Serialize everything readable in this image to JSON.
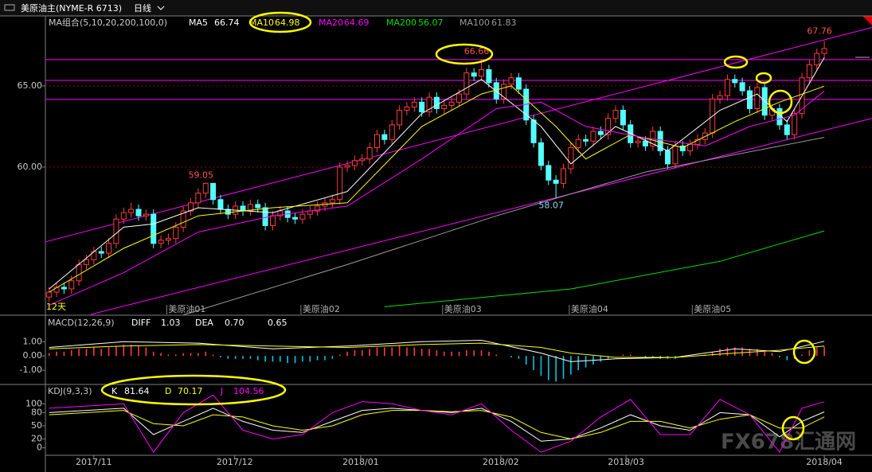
{
  "toolbar": {
    "symbol": "美原油主(NYME-R 6713)",
    "period": "日线"
  },
  "chart_data": [
    {
      "type": "candlestick",
      "indicator_label": "MA组合(5,10,20,200,100,0)",
      "up_color": "#ff3c3c",
      "down_color": "#54ffff",
      "xlim": [
        -0.5,
        110.4
      ],
      "ylim": [
        50.93,
        69.31
      ],
      "yticks": [
        {
          "value": 65,
          "label": "65.00"
        },
        {
          "value": 60,
          "label": "60.00"
        }
      ],
      "grid": true,
      "xticks": [
        {
          "value": 6,
          "label": "2017/11"
        },
        {
          "value": 24.9,
          "label": "2017/12"
        },
        {
          "value": 41.8,
          "label": "2018/01"
        },
        {
          "value": 60.6,
          "label": "2018/02"
        },
        {
          "value": 77.4,
          "label": "2018/03"
        },
        {
          "value": 104,
          "label": "2018/04"
        }
      ],
      "open": [
        52.0,
        52.3,
        52.6,
        52.5,
        53.0,
        54.0,
        54.3,
        54.8,
        54.7,
        55.3,
        56.8,
        57.2,
        57.4,
        57.0,
        57.1,
        55.3,
        55.5,
        55.6,
        56.3,
        57.3,
        57.8,
        58.4,
        59.0,
        58.0,
        57.4,
        57.1,
        57.6,
        57.3,
        57.7,
        57.5,
        56.4,
        57.0,
        57.3,
        56.9,
        56.8,
        57.1,
        57.3,
        57.6,
        57.8,
        58.0,
        60.0,
        60.1,
        60.4,
        60.5,
        61.2,
        62.0,
        61.7,
        62.6,
        63.5,
        63.7,
        64.0,
        63.4,
        64.3,
        63.6,
        63.8,
        64.0,
        64.5,
        65.8,
        65.6,
        66.0,
        65.2,
        64.2,
        65.1,
        65.5,
        64.8,
        62.9,
        61.5,
        60.1,
        59.2,
        59.0,
        59.9,
        61.2,
        61.7,
        61.6,
        62.2,
        62.0,
        63.0,
        63.5,
        62.6,
        61.5,
        61.6,
        61.3,
        62.2,
        61.0,
        60.2,
        61.3,
        61.0,
        61.4,
        61.7,
        62.1,
        64.2,
        64.4,
        65.4,
        65.2,
        64.7,
        63.6,
        64.9,
        63.2,
        63.6,
        62.6,
        62.0,
        63.3,
        65.5,
        66.3,
        67.0
      ],
      "high": [
        52.6,
        52.9,
        52.9,
        53.3,
        54.3,
        54.6,
        55.1,
        55.1,
        55.6,
        57.1,
        57.5,
        57.8,
        57.7,
        57.4,
        57.4,
        55.8,
        55.9,
        56.6,
        57.6,
        58.1,
        58.7,
        59.05,
        59.0,
        58.3,
        57.7,
        57.9,
        57.9,
        58.0,
        58.0,
        57.8,
        57.3,
        57.6,
        57.6,
        57.2,
        57.4,
        57.6,
        57.9,
        58.1,
        58.3,
        60.3,
        60.4,
        60.7,
        60.8,
        61.5,
        62.3,
        62.3,
        62.9,
        63.8,
        64.0,
        64.3,
        64.3,
        64.6,
        64.6,
        64.1,
        64.3,
        64.8,
        66.1,
        66.1,
        66.66,
        66.3,
        65.5,
        65.4,
        65.8,
        65.8,
        65.1,
        63.2,
        61.8,
        60.4,
        59.5,
        60.2,
        61.5,
        62.0,
        62.0,
        62.5,
        62.5,
        63.3,
        63.8,
        63.8,
        62.9,
        61.9,
        61.9,
        62.5,
        62.5,
        61.3,
        61.6,
        61.6,
        61.7,
        62.0,
        62.4,
        64.5,
        64.7,
        65.7,
        65.7,
        65.5,
        65.0,
        65.2,
        65.2,
        63.9,
        63.9,
        62.9,
        63.6,
        65.8,
        66.6,
        67.3,
        67.76
      ],
      "low": [
        51.7,
        52.0,
        52.2,
        52.2,
        52.7,
        53.7,
        54.0,
        54.4,
        54.4,
        55.0,
        56.5,
        56.9,
        56.7,
        56.7,
        55.0,
        55.0,
        55.2,
        55.3,
        56.0,
        57.0,
        57.5,
        58.1,
        57.7,
        57.1,
        56.8,
        56.8,
        57.0,
        57.0,
        57.2,
        56.1,
        56.1,
        56.7,
        56.6,
        56.5,
        56.5,
        56.8,
        57.0,
        57.3,
        57.5,
        57.7,
        59.7,
        59.8,
        60.1,
        60.2,
        60.9,
        61.4,
        61.4,
        62.3,
        63.2,
        63.4,
        63.1,
        63.1,
        63.3,
        63.3,
        63.5,
        63.7,
        64.2,
        65.3,
        65.3,
        64.9,
        63.9,
        63.9,
        64.8,
        64.5,
        62.6,
        61.2,
        59.8,
        58.9,
        58.07,
        58.7,
        59.6,
        60.9,
        61.3,
        61.3,
        61.7,
        61.7,
        62.7,
        62.3,
        61.2,
        61.2,
        61.0,
        61.0,
        60.7,
        59.9,
        59.9,
        60.7,
        60.7,
        61.1,
        61.4,
        61.8,
        63.9,
        64.1,
        64.9,
        64.4,
        63.3,
        63.3,
        62.9,
        62.9,
        62.3,
        61.7,
        61.7,
        63.0,
        65.2,
        66.0,
        66.7
      ],
      "close": [
        52.3,
        52.6,
        52.5,
        53.0,
        54.0,
        54.3,
        54.8,
        54.7,
        55.3,
        56.8,
        57.2,
        57.4,
        57.0,
        57.1,
        55.3,
        55.5,
        55.6,
        56.3,
        57.3,
        57.8,
        58.4,
        59.0,
        58.0,
        57.4,
        57.1,
        57.6,
        57.3,
        57.7,
        57.5,
        56.4,
        57.0,
        57.3,
        56.9,
        56.8,
        57.1,
        57.3,
        57.6,
        57.8,
        58.0,
        60.0,
        60.1,
        60.4,
        60.5,
        61.2,
        62.0,
        61.7,
        62.6,
        63.5,
        63.7,
        64.0,
        63.4,
        64.3,
        63.6,
        63.8,
        64.0,
        64.5,
        65.8,
        65.6,
        66.0,
        65.2,
        64.2,
        65.1,
        65.5,
        64.8,
        62.9,
        61.5,
        60.1,
        59.2,
        59.0,
        59.9,
        61.2,
        61.7,
        61.6,
        62.2,
        62.0,
        63.0,
        63.5,
        62.6,
        61.5,
        61.6,
        61.3,
        62.2,
        61.0,
        60.2,
        61.3,
        61.0,
        61.4,
        61.7,
        62.1,
        64.2,
        64.4,
        65.4,
        65.2,
        64.7,
        63.6,
        64.9,
        63.2,
        63.6,
        62.6,
        62.0,
        63.3,
        65.5,
        66.3,
        67.0,
        67.3
      ],
      "lines": [
        {
          "name": "MA5",
          "color": "#ffffff",
          "x": [
            0,
            10,
            14,
            20,
            30,
            40,
            50,
            58,
            66,
            70,
            76,
            83,
            90,
            95,
            99,
            104
          ],
          "values": [
            52.5,
            56.3,
            56.5,
            57.5,
            57.2,
            58.5,
            63.3,
            65.4,
            62.5,
            60.2,
            62.5,
            61.0,
            63.5,
            64.5,
            62.8,
            66.74
          ]
        },
        {
          "name": "MA10",
          "color": "#ffff00",
          "x": [
            0,
            10,
            20,
            30,
            40,
            50,
            58,
            62,
            68,
            72,
            78,
            85,
            92,
            98,
            104
          ],
          "values": [
            52.3,
            55.0,
            57.0,
            57.5,
            57.8,
            62.5,
            64.5,
            65.0,
            62.5,
            60.5,
            62.0,
            61.2,
            62.8,
            64.0,
            64.98
          ]
        },
        {
          "name": "MA20",
          "color": "#ff00ff",
          "x": [
            0,
            10,
            20,
            30,
            40,
            50,
            60,
            66,
            72,
            80,
            88,
            94,
            100,
            104
          ],
          "values": [
            51.5,
            53.5,
            56.0,
            57.0,
            57.6,
            60.5,
            63.6,
            64.0,
            62.5,
            61.8,
            61.3,
            62.5,
            63.2,
            64.69
          ]
        },
        {
          "name": "MA200",
          "color": "#00e000",
          "x": [
            45,
            70,
            90,
            104
          ],
          "values": [
            51.4,
            52.5,
            54.2,
            56.07
          ]
        },
        {
          "name": "MA100",
          "color": "#9a9a9a",
          "x": [
            18,
            40,
            60,
            80,
            104
          ],
          "values": [
            50.9,
            54.0,
            57.0,
            59.7,
            61.83
          ]
        }
      ],
      "levels": [
        66.62,
        65.34,
        64.17
      ],
      "trendlines": [
        {
          "x": [
            -0.5,
            110.4
          ],
          "values": [
            55.4,
            68.6
          ]
        },
        {
          "x": [
            5.6,
            110.4
          ],
          "values": [
            50.93,
            63.0
          ]
        }
      ],
      "contracts": [
        {
          "value": 16,
          "label": "美原油01"
        },
        {
          "value": 34,
          "label": "美原油02"
        },
        {
          "value": 53,
          "label": "美原油03"
        },
        {
          "value": 70,
          "label": "美原油04"
        },
        {
          "value": 86.5,
          "label": "美原油05"
        }
      ],
      "days_label": "12天",
      "watermark": "FX678汇通网"
    },
    {
      "type": "macd",
      "title": "MACD(12,26,9)",
      "ylim": [
        -2.0,
        2.86
      ],
      "yticks": [
        {
          "value": 1,
          "label": "1.00"
        },
        {
          "value": 0,
          "label": "0.00"
        },
        {
          "value": -1,
          "label": "-1.00"
        }
      ],
      "up_color": "#ff3c3c",
      "down_color": "#00c8e6",
      "values": [
        0.2,
        0.3,
        0.3,
        0.4,
        0.5,
        0.5,
        0.6,
        0.5,
        0.6,
        0.7,
        0.8,
        0.8,
        0.7,
        0.6,
        0.3,
        0.2,
        0.1,
        0.1,
        0.2,
        0.2,
        0.2,
        0.3,
        0.1,
        -0.1,
        -0.2,
        -0.2,
        -0.2,
        -0.2,
        -0.3,
        -0.4,
        -0.4,
        -0.4,
        -0.5,
        -0.5,
        -0.4,
        -0.4,
        -0.3,
        -0.3,
        -0.2,
        0.1,
        0.3,
        0.4,
        0.4,
        0.5,
        0.6,
        0.6,
        0.6,
        0.7,
        0.6,
        0.6,
        0.5,
        0.5,
        0.4,
        0.3,
        0.3,
        0.3,
        0.4,
        0.4,
        0.4,
        0.3,
        0.1,
        0.0,
        -0.1,
        -0.2,
        -0.6,
        -1.0,
        -1.4,
        -1.7,
        -1.8,
        -1.6,
        -1.3,
        -1.0,
        -0.8,
        -0.6,
        -0.4,
        -0.2,
        0.0,
        0.1,
        0.1,
        0.0,
        -0.1,
        -0.1,
        -0.2,
        -0.2,
        -0.2,
        -0.1,
        0.0,
        0.0,
        0.1,
        0.3,
        0.5,
        0.6,
        0.6,
        0.6,
        0.5,
        0.5,
        0.3,
        0.2,
        -0.1,
        -0.3,
        -0.2,
        0.1,
        0.4,
        0.6,
        0.65
      ],
      "series": [
        {
          "name": "DIFF",
          "color": "#ffffff",
          "x": [
            0,
            10,
            20,
            30,
            40,
            50,
            58,
            66,
            70,
            76,
            84,
            92,
            98,
            104
          ],
          "values": [
            0.6,
            1.0,
            0.9,
            0.5,
            0.7,
            1.0,
            1.1,
            0.2,
            -0.4,
            -0.2,
            -0.1,
            0.5,
            0.3,
            1.03
          ]
        },
        {
          "name": "DEA",
          "color": "#ffff00",
          "x": [
            0,
            10,
            20,
            30,
            40,
            50,
            58,
            66,
            70,
            76,
            84,
            92,
            98,
            104
          ],
          "values": [
            0.5,
            0.7,
            0.8,
            0.7,
            0.6,
            0.8,
            0.9,
            0.6,
            0.2,
            -0.1,
            -0.1,
            0.2,
            0.4,
            0.7
          ],
          "value_labels": [
            null,
            null,
            null,
            null,
            null,
            null,
            null,
            null,
            null,
            null,
            null,
            null,
            null,
            "0.70"
          ]
        }
      ]
    },
    {
      "type": "line",
      "title": "KDJ(9,3,3)",
      "ylim": [
        -17,
        144
      ],
      "yticks": [
        100,
        80,
        50,
        20,
        0
      ],
      "series": [
        {
          "name": "K",
          "color": "#ffffff",
          "x": [
            0,
            5,
            10,
            14,
            18,
            22,
            26,
            30,
            34,
            38,
            42,
            46,
            50,
            54,
            58,
            62,
            66,
            70,
            74,
            78,
            82,
            86,
            90,
            94,
            98,
            101,
            104
          ],
          "values": [
            80,
            85,
            90,
            30,
            60,
            90,
            60,
            40,
            35,
            60,
            85,
            90,
            85,
            80,
            90,
            60,
            15,
            20,
            45,
            75,
            50,
            40,
            80,
            75,
            25,
            60,
            81.64
          ]
        },
        {
          "name": "D",
          "color": "#ffff00",
          "x": [
            0,
            5,
            10,
            14,
            18,
            22,
            26,
            30,
            34,
            38,
            42,
            46,
            50,
            54,
            58,
            62,
            66,
            70,
            74,
            78,
            82,
            86,
            90,
            94,
            98,
            101,
            104
          ],
          "values": [
            75,
            80,
            85,
            55,
            50,
            75,
            70,
            50,
            40,
            50,
            75,
            85,
            85,
            82,
            85,
            70,
            35,
            20,
            35,
            60,
            60,
            45,
            65,
            75,
            45,
            45,
            70.17
          ]
        },
        {
          "name": "J",
          "color": "#ff00ff",
          "x": [
            0,
            5,
            10,
            14,
            18,
            22,
            26,
            30,
            34,
            38,
            42,
            46,
            50,
            54,
            58,
            62,
            66,
            70,
            74,
            78,
            82,
            86,
            90,
            94,
            98,
            101,
            104
          ],
          "values": [
            90,
            95,
            100,
            -10,
            80,
            120,
            40,
            20,
            30,
            80,
            105,
            100,
            85,
            75,
            100,
            40,
            -10,
            15,
            70,
            110,
            30,
            30,
            110,
            75,
            -10,
            90,
            104.56
          ]
        }
      ]
    }
  ]
}
